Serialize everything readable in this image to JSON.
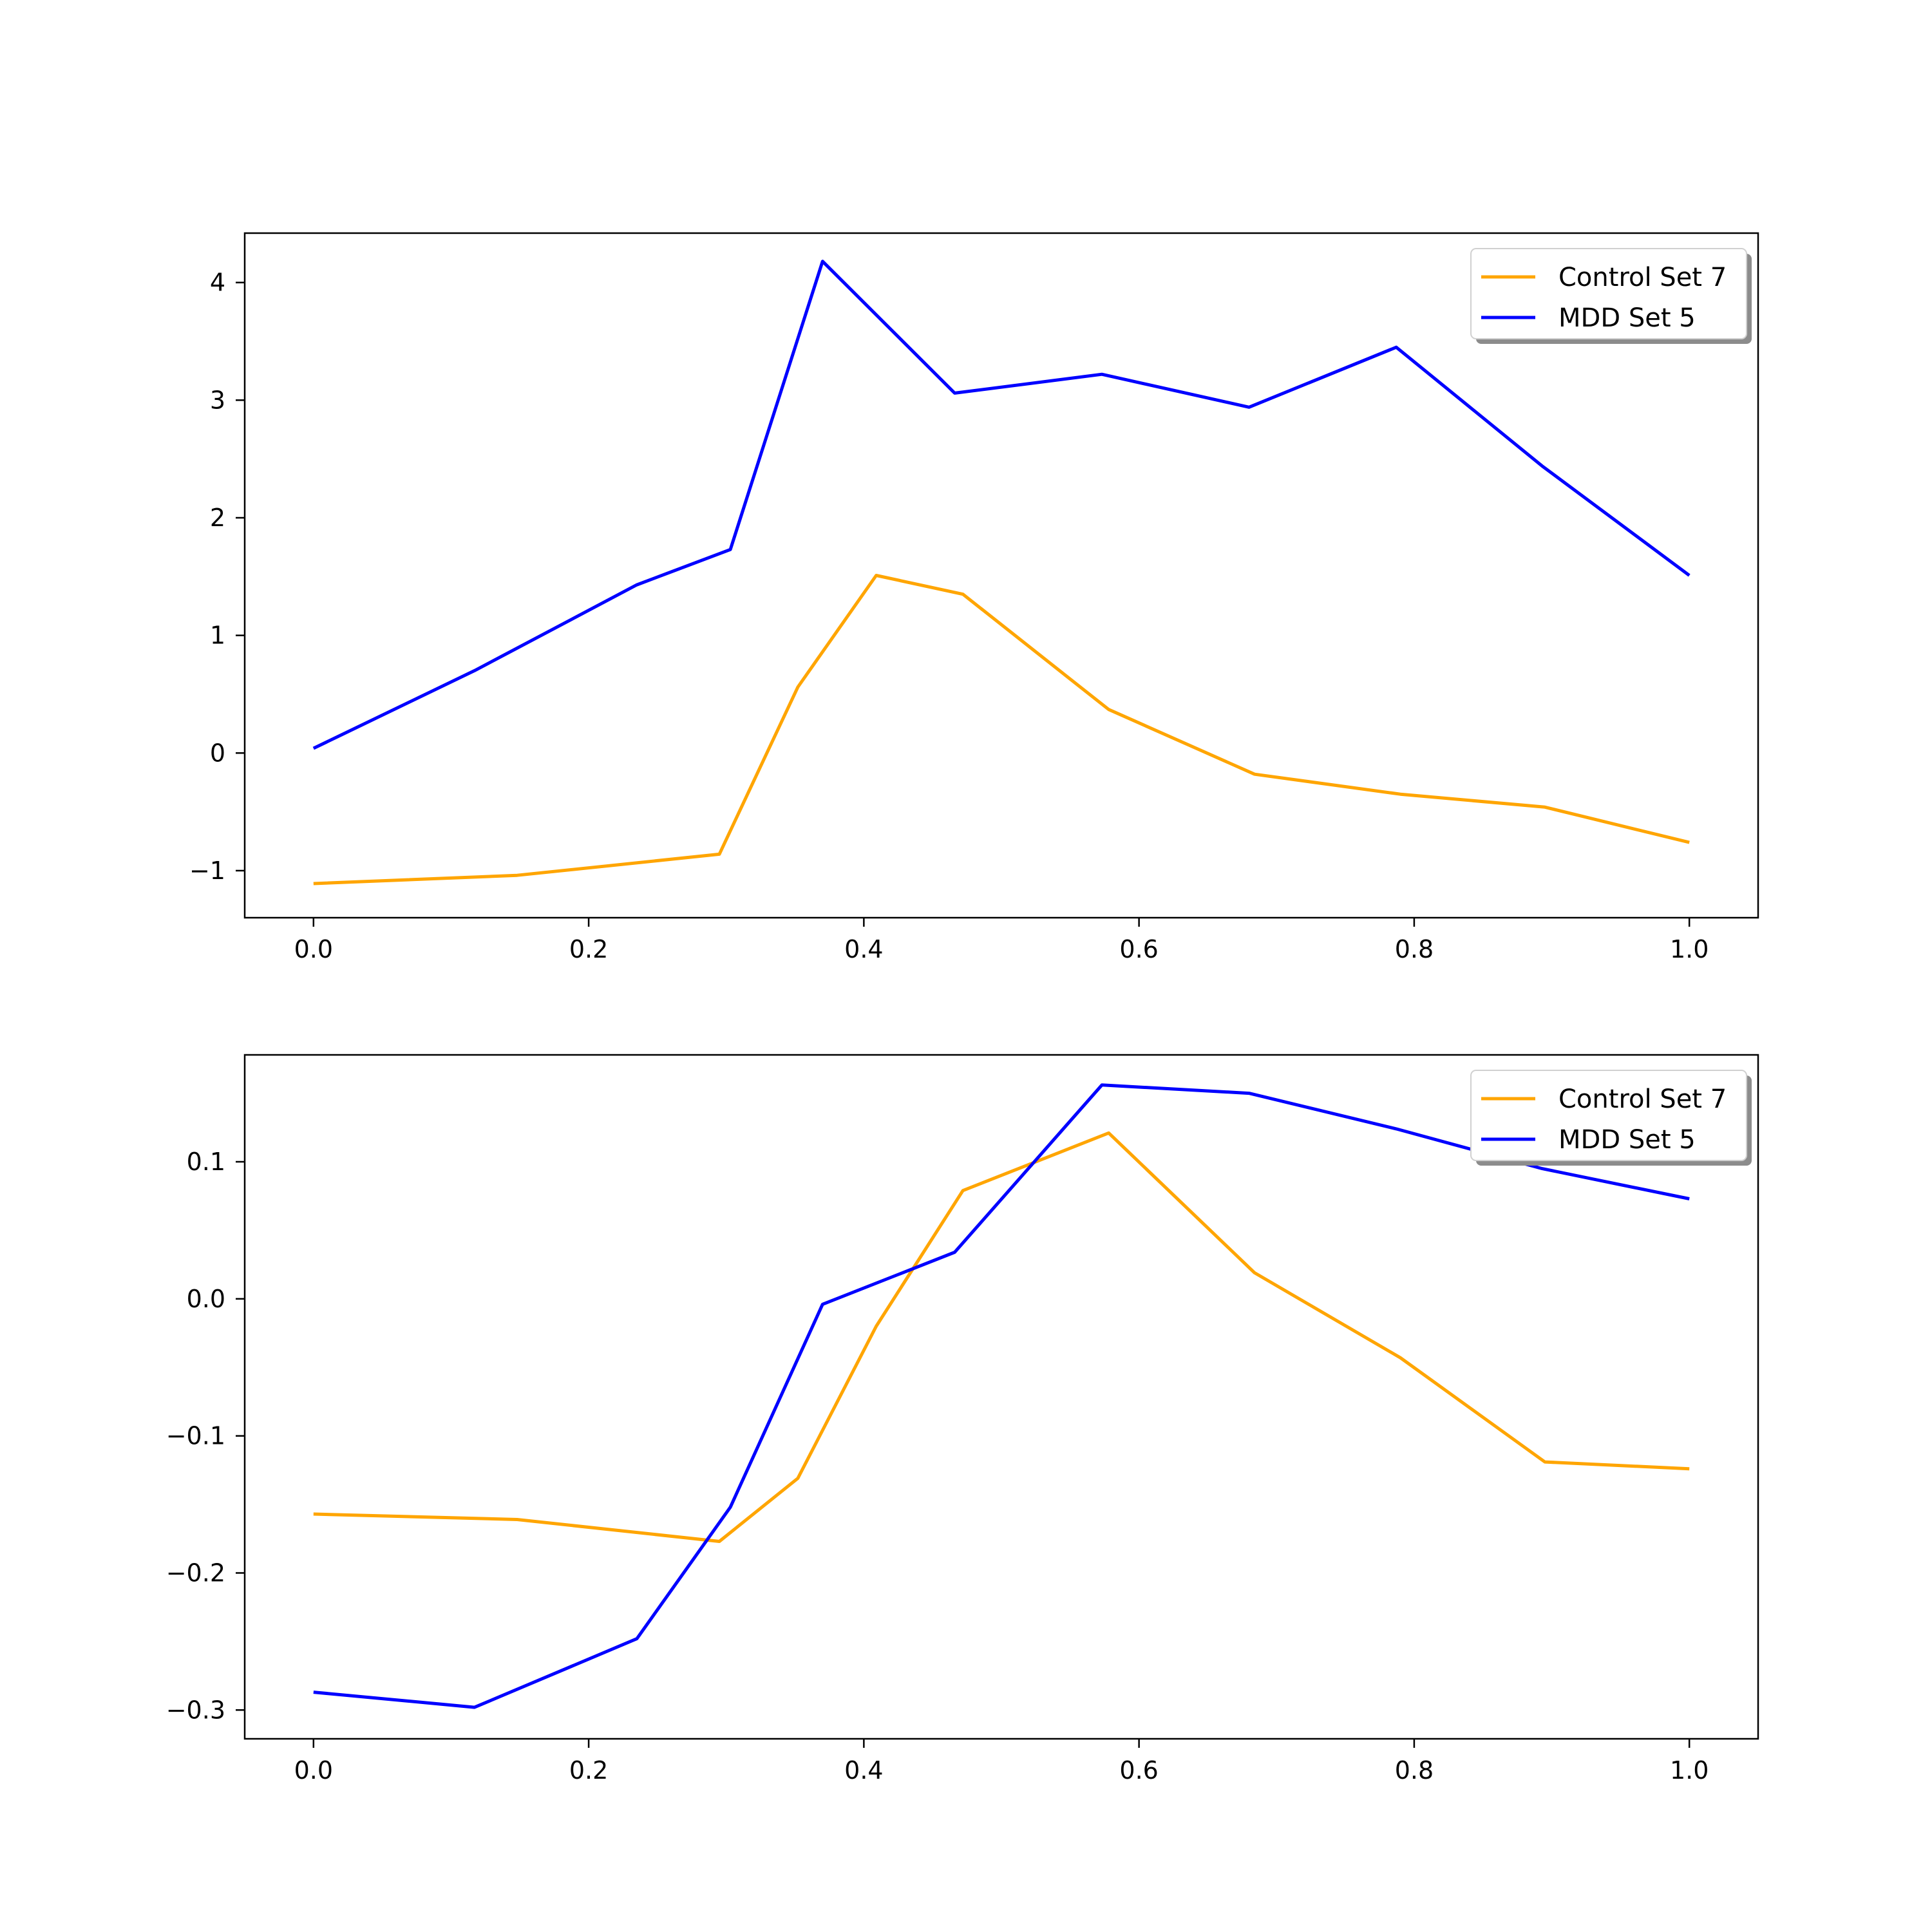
{
  "chart_data": [
    {
      "type": "line",
      "title": "",
      "xlabel": "",
      "ylabel": "",
      "xlim": [
        -0.05,
        1.05
      ],
      "ylim": [
        -1.4,
        4.42
      ],
      "xticks": [
        "0.0",
        "0.2",
        "0.4",
        "0.6",
        "0.8",
        "1.0"
      ],
      "xtick_values": [
        0.0,
        0.2,
        0.4,
        0.6,
        0.8,
        1.0
      ],
      "yticks": [
        "−1",
        "0",
        "1",
        "2",
        "3",
        "4"
      ],
      "ytick_values": [
        -1,
        0,
        1,
        2,
        3,
        4
      ],
      "grid": false,
      "legend_position": "top-right",
      "series": [
        {
          "name": "Control Set 7",
          "color": "#FFA500",
          "x": [
            0.0,
            0.148,
            0.295,
            0.352,
            0.409,
            0.472,
            0.578,
            0.684,
            0.79,
            0.895,
            1.0
          ],
          "y": [
            -1.11,
            -1.04,
            -0.86,
            0.56,
            1.51,
            1.35,
            0.37,
            -0.18,
            -0.35,
            -0.46,
            -0.76
          ]
        },
        {
          "name": "MDD Set 5",
          "color": "#0000FF",
          "x": [
            0.0,
            0.117,
            0.235,
            0.303,
            0.37,
            0.466,
            0.573,
            0.68,
            0.787,
            0.893,
            1.0
          ],
          "y": [
            0.04,
            0.7,
            1.43,
            1.73,
            4.18,
            3.06,
            3.22,
            2.94,
            3.45,
            2.44,
            1.51
          ]
        }
      ]
    },
    {
      "type": "line",
      "title": "",
      "xlabel": "",
      "ylabel": "",
      "xlim": [
        -0.05,
        1.05
      ],
      "ylim": [
        -0.321,
        0.178
      ],
      "xticks": [
        "0.0",
        "0.2",
        "0.4",
        "0.6",
        "0.8",
        "1.0"
      ],
      "xtick_values": [
        0.0,
        0.2,
        0.4,
        0.6,
        0.8,
        1.0
      ],
      "yticks": [
        "−0.3",
        "−0.2",
        "−0.1",
        "0.0",
        "0.1"
      ],
      "ytick_values": [
        -0.3,
        -0.2,
        -0.1,
        0.0,
        0.1
      ],
      "grid": false,
      "legend_position": "top-right",
      "series": [
        {
          "name": "Control Set 7",
          "color": "#FFA500",
          "x": [
            0.0,
            0.148,
            0.295,
            0.352,
            0.409,
            0.472,
            0.578,
            0.684,
            0.79,
            0.895,
            1.0
          ],
          "y": [
            -0.157,
            -0.161,
            -0.177,
            -0.131,
            -0.02,
            0.079,
            0.121,
            0.019,
            -0.043,
            -0.119,
            -0.124
          ]
        },
        {
          "name": "MDD Set 5",
          "color": "#0000FF",
          "x": [
            0.0,
            0.117,
            0.235,
            0.303,
            0.37,
            0.466,
            0.573,
            0.68,
            0.787,
            0.893,
            1.0
          ],
          "y": [
            -0.287,
            -0.298,
            -0.248,
            -0.152,
            -0.004,
            0.034,
            0.156,
            0.15,
            0.124,
            0.095,
            0.073
          ]
        }
      ]
    }
  ]
}
